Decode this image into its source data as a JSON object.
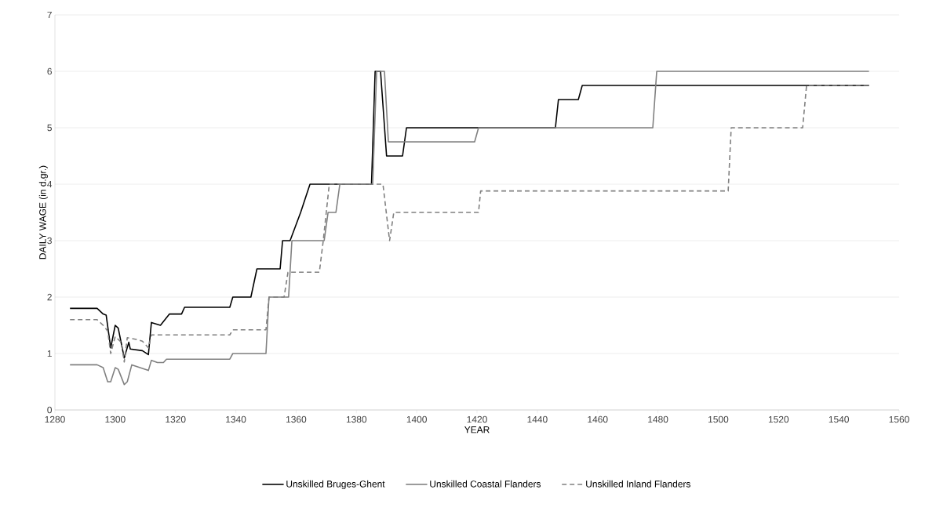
{
  "chart_data": {
    "type": "line",
    "xlabel": "YEAR",
    "ylabel": "DAILY WAGE (in d.gr.)",
    "xlim": [
      1280,
      1560
    ],
    "xticks": [
      1280,
      1300,
      1320,
      1340,
      1360,
      1380,
      1400,
      1420,
      1440,
      1460,
      1480,
      1500,
      1520,
      1540,
      1560
    ],
    "ylim": [
      0,
      7
    ],
    "yticks": [
      0,
      1,
      2,
      3,
      4,
      5,
      6,
      7
    ],
    "grid": "y",
    "legend": "bottom",
    "marker": "none",
    "series": [
      {
        "name": "Unskilled Bruges-Ghent",
        "color": "#000000",
        "line_style": "solid",
        "x": [
          1285,
          1294,
          1296,
          1297,
          1298.5,
          1300,
          1301,
          1303,
          1304.5,
          1305,
          1309,
          1311,
          1312,
          1315,
          1318,
          1322,
          1323,
          1338,
          1339,
          1345,
          1347,
          1354.7,
          1355.5,
          1358,
          1361.5,
          1364.6,
          1385,
          1386.2,
          1388,
          1390,
          1395.3,
          1396.6,
          1446,
          1447,
          1453.6,
          1454.9,
          1550
        ],
        "values": [
          1.8,
          1.8,
          1.7,
          1.68,
          1.1,
          1.5,
          1.45,
          0.92,
          1.2,
          1.08,
          1.05,
          0.98,
          1.55,
          1.5,
          1.7,
          1.7,
          1.82,
          1.82,
          2.0,
          2.0,
          2.5,
          2.5,
          3.0,
          3.0,
          3.5,
          4.0,
          4.0,
          6.0,
          6.0,
          4.5,
          4.5,
          5.0,
          5.0,
          5.5,
          5.5,
          5.75,
          5.75
        ]
      },
      {
        "name": "Unskilled Coastal Flanders",
        "color": "#808080",
        "line_style": "solid",
        "x": [
          1285,
          1294,
          1296,
          1297.5,
          1298.5,
          1300,
          1301,
          1303,
          1304,
          1305.5,
          1310,
          1311,
          1312,
          1314,
          1316,
          1317,
          1338,
          1339,
          1350,
          1351,
          1357.5,
          1358.6,
          1369.3,
          1370.6,
          1373.2,
          1374.5,
          1385.4,
          1386.7,
          1389.3,
          1390.6,
          1419.2,
          1420.5,
          1478.3,
          1479.6,
          1550
        ],
        "values": [
          0.8,
          0.8,
          0.75,
          0.5,
          0.5,
          0.75,
          0.72,
          0.45,
          0.5,
          0.8,
          0.72,
          0.7,
          0.88,
          0.84,
          0.84,
          0.9,
          0.9,
          1.0,
          1.0,
          2.0,
          2.0,
          3.0,
          3.0,
          3.5,
          3.5,
          4.0,
          4.0,
          6.0,
          6.0,
          4.75,
          4.75,
          5.0,
          5.0,
          6.0,
          6.0
        ]
      },
      {
        "name": "Unskilled Inland Flanders",
        "color": "#808080",
        "line_style": "dashed",
        "x": [
          1285,
          1294,
          1296,
          1297.5,
          1298.5,
          1300,
          1302,
          1303,
          1304,
          1307,
          1309,
          1311,
          1312,
          1338,
          1339,
          1350,
          1351,
          1356,
          1357.3,
          1367.7,
          1369,
          1370,
          1371,
          1388.8,
          1391,
          1392.4,
          1420.5,
          1421.2,
          1503.3,
          1504.3,
          1528,
          1529.3,
          1550
        ],
        "values": [
          1.6,
          1.6,
          1.5,
          1.4,
          1.0,
          1.3,
          1.2,
          0.85,
          1.28,
          1.25,
          1.22,
          1.1,
          1.33,
          1.33,
          1.42,
          1.42,
          2.0,
          2.0,
          2.44,
          2.44,
          3.0,
          3.5,
          4.0,
          4.0,
          3.0,
          3.5,
          3.5,
          3.88,
          3.88,
          5.0,
          5.0,
          5.75,
          5.75
        ]
      }
    ]
  }
}
